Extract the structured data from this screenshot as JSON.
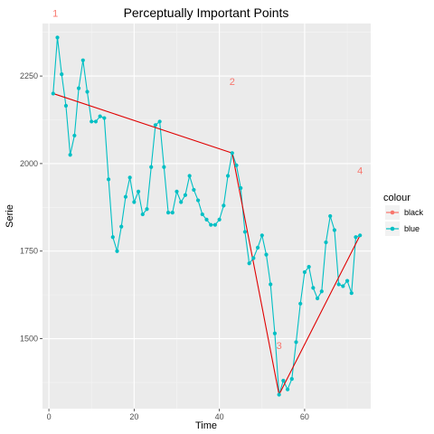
{
  "chart_data": {
    "type": "line",
    "title": "Perceptually Important Points",
    "xlabel": "Time",
    "ylabel": "Serie",
    "xlim": [
      -1.5,
      75.5
    ],
    "ylim": [
      1300,
      2400
    ],
    "x_ticks": [
      0,
      20,
      40,
      60
    ],
    "y_ticks": [
      1500,
      1750,
      2000,
      2250
    ],
    "grid": true,
    "legend": {
      "title": "colour",
      "position": "right",
      "entries": [
        {
          "label": "black",
          "color": "#F8766D"
        },
        {
          "label": "blue",
          "color": "#00BFC4"
        }
      ]
    },
    "series": [
      {
        "name": "black",
        "color": "#E00000",
        "x": [
          1,
          43,
          54,
          73
        ],
        "y": [
          2200,
          2030,
          1340,
          1795
        ]
      },
      {
        "name": "blue",
        "color": "#00BFC4",
        "x": [
          1,
          2,
          3,
          4,
          5,
          6,
          7,
          8,
          9,
          10,
          11,
          12,
          13,
          14,
          15,
          16,
          17,
          18,
          19,
          20,
          21,
          22,
          23,
          24,
          25,
          26,
          27,
          28,
          29,
          30,
          31,
          32,
          33,
          34,
          35,
          36,
          37,
          38,
          39,
          40,
          41,
          42,
          43,
          44,
          45,
          46,
          47,
          48,
          49,
          50,
          51,
          52,
          53,
          54,
          55,
          56,
          57,
          58,
          59,
          60,
          61,
          62,
          63,
          64,
          65,
          66,
          67,
          68,
          69,
          70,
          71,
          72,
          73
        ],
        "y": [
          2200,
          2360,
          2255,
          2165,
          2025,
          2080,
          2215,
          2295,
          2205,
          2120,
          2120,
          2135,
          2130,
          1955,
          1790,
          1750,
          1820,
          1905,
          1960,
          1890,
          1920,
          1855,
          1870,
          1990,
          2110,
          2120,
          1990,
          1860,
          1860,
          1920,
          1890,
          1910,
          1965,
          1925,
          1895,
          1855,
          1840,
          1825,
          1825,
          1840,
          1880,
          1965,
          2030,
          1995,
          1930,
          1805,
          1715,
          1730,
          1760,
          1795,
          1740,
          1655,
          1515,
          1340,
          1380,
          1355,
          1385,
          1490,
          1600,
          1690,
          1705,
          1645,
          1615,
          1635,
          1775,
          1850,
          1810,
          1655,
          1650,
          1665,
          1630,
          1790,
          1795
        ]
      }
    ],
    "annotations": [
      {
        "text": "1",
        "x": 1.5,
        "y": 2420
      },
      {
        "text": "2",
        "x": 43,
        "y": 2225
      },
      {
        "text": "3",
        "x": 54,
        "y": 1470
      },
      {
        "text": "4",
        "x": 73,
        "y": 1970
      }
    ]
  }
}
